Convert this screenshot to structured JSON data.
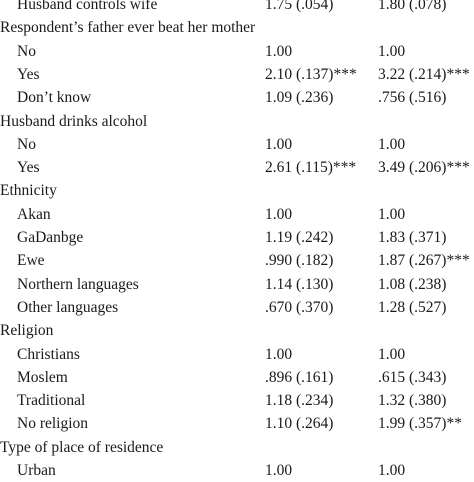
{
  "rows": [
    {
      "type": "sub",
      "label": "Husband controls wife",
      "c1": "1.75 (.054)",
      "c2": "1.80 (.078)"
    },
    {
      "type": "header",
      "label": "Respondent’s father ever beat her mother",
      "c1": "",
      "c2": ""
    },
    {
      "type": "sub",
      "label": "No",
      "c1": "1.00",
      "c2": "1.00"
    },
    {
      "type": "sub",
      "label": "Yes",
      "c1": "2.10 (.137)***",
      "c2": "3.22 (.214)***"
    },
    {
      "type": "sub",
      "label": "Don’t know",
      "c1": "1.09 (.236)",
      "c2": ".756 (.516)"
    },
    {
      "type": "header",
      "label": "Husband drinks alcohol",
      "c1": "",
      "c2": ""
    },
    {
      "type": "sub",
      "label": "No",
      "c1": "1.00",
      "c2": "1.00"
    },
    {
      "type": "sub",
      "label": "Yes",
      "c1": "2.61 (.115)***",
      "c2": "3.49 (.206)***"
    },
    {
      "type": "header",
      "label": "Ethnicity",
      "c1": "",
      "c2": ""
    },
    {
      "type": "sub",
      "label": "Akan",
      "c1": "1.00",
      "c2": "1.00"
    },
    {
      "type": "sub",
      "label": "GaDanbge",
      "c1": "1.19 (.242)",
      "c2": "1.83 (.371)"
    },
    {
      "type": "sub",
      "label": "Ewe",
      "c1": ".990 (.182)",
      "c2": "1.87 (.267)***"
    },
    {
      "type": "sub",
      "label": "Northern languages",
      "c1": "1.14 (.130)",
      "c2": "1.08 (.238)"
    },
    {
      "type": "sub",
      "label": "Other languages",
      "c1": ".670 (.370)",
      "c2": "1.28 (.527)"
    },
    {
      "type": "header",
      "label": "Religion",
      "c1": "",
      "c2": ""
    },
    {
      "type": "sub",
      "label": "Christians",
      "c1": "1.00",
      "c2": "1.00"
    },
    {
      "type": "sub",
      "label": "Moslem",
      "c1": ".896 (.161)",
      "c2": ".615 (.343)"
    },
    {
      "type": "sub",
      "label": "Traditional",
      "c1": "1.18 (.234)",
      "c2": "1.32 (.380)"
    },
    {
      "type": "sub",
      "label": "No religion",
      "c1": "1.10 (.264)",
      "c2": "1.99 (.357)**"
    },
    {
      "type": "header",
      "label": "Type of place of residence",
      "c1": "",
      "c2": ""
    },
    {
      "type": "sub",
      "label": "Urban",
      "c1": "1.00",
      "c2": "1.00"
    }
  ]
}
